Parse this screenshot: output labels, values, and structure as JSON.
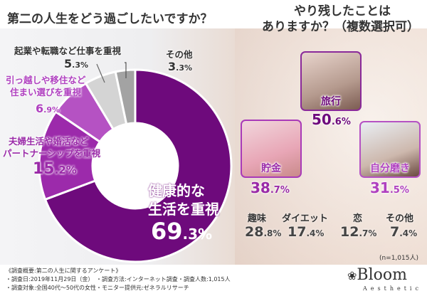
{
  "chart_data": [
    {
      "type": "pie",
      "title": "第二の人生をどう過ごしたいですか？",
      "categories": [
        "健康的な生活を重視",
        "夫婦生活や婚活などパートナーシップを重視",
        "引っ越しや移住など住まい選びを重視",
        "起業や転職など仕事を重視",
        "その他"
      ],
      "values": [
        69.3,
        15.2,
        6.9,
        5.3,
        3.3
      ],
      "value_labels": [
        "69.3%",
        "15.2%",
        "6.9%",
        "5.3%",
        "3.3%"
      ],
      "colors": [
        "#6e0a7c",
        "#9c2aab",
        "#b552c3",
        "#d4d4d4",
        "#a3a3a3"
      ],
      "donut": true
    },
    {
      "type": "bar",
      "title": "やり残したことはありますか？（複数選択可）",
      "categories": [
        "旅行",
        "貯金",
        "自分磨き",
        "趣味",
        "ダイエット",
        "恋",
        "その他"
      ],
      "values": [
        50.6,
        38.7,
        31.5,
        28.8,
        17.4,
        12.7,
        7.4
      ],
      "value_labels": [
        "50.6%",
        "38.7%",
        "31.5%",
        "28.8%",
        "17.4%",
        "12.7%",
        "7.4%"
      ],
      "note": "(n=1,015人)"
    }
  ],
  "left": {
    "title": "第二の人生をどう過ごしたいですか？"
  },
  "right": {
    "title1": "やり残したことは",
    "title2": "ありますか？（複数選択可）"
  },
  "donut_labels": {
    "health": [
      "健康的な",
      "生活を重視",
      "69",
      ".3%"
    ],
    "partner": [
      "夫婦生活や婚活など",
      "パートナーシップを重視",
      "15",
      ".2%"
    ],
    "home": [
      "引っ越しや移住など",
      "住まい選びを重視",
      "6",
      ".9%"
    ],
    "work": [
      "起業や転職など仕事を重視",
      "5",
      ".3%"
    ],
    "other": [
      "その他",
      "3",
      ".3%"
    ]
  },
  "photos": [
    {
      "label": "旅行",
      "int": "50",
      ".dec": "",
      "v": [
        "50",
        ".6%"
      ]
    },
    {
      "label": "貯金",
      "v": [
        "38",
        ".7%"
      ]
    },
    {
      "label": "自分磨き",
      "v": [
        "31",
        ".5%"
      ]
    }
  ],
  "stats": [
    {
      "label": "趣味",
      "v": [
        "28",
        ".8%"
      ]
    },
    {
      "label": "ダイエット",
      "v": [
        "17",
        ".4%"
      ]
    },
    {
      "label": "恋",
      "v": [
        "12",
        ".7%"
      ]
    },
    {
      "label": "その他",
      "v": [
        "7",
        ".4%"
      ]
    }
  ],
  "n_note": "(n=1,015人)",
  "footer": {
    "heading": "《調査概要:第二の人生に関するアンケート》",
    "date": "・調査日:2019年11月29日（金）",
    "method": "・調査方法:インターネット調査",
    "count": "・調査人数:1,015人",
    "target": "・調査対象:全国40代〜50代の女性",
    "provider": "・モニター提供元:ゼネラルリサーチ"
  },
  "logo": {
    "name": "Bloom",
    "sub": "Aesthetic"
  }
}
